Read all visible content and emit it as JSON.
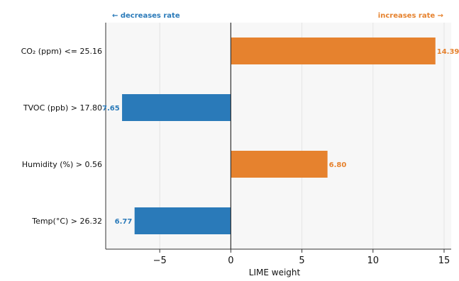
{
  "chart_data": {
    "type": "bar",
    "orientation": "horizontal",
    "direction_labels": {
      "negative": "← decreases rate",
      "positive": "increases rate →"
    },
    "categories": [
      "CO₂ (ppm) <= 25.16",
      "TVOC (ppb) > 17.80",
      "Humidity (%) > 0.56",
      "Temp(°C) > 26.32"
    ],
    "values": [
      14.39,
      -7.65,
      6.8,
      -6.77
    ],
    "value_labels": [
      "14.39",
      "7.65",
      "6.80",
      "6.77"
    ],
    "xlabel": "LIME weight",
    "ylabel": "",
    "title": "",
    "xlim": [
      -8.8,
      15.5
    ],
    "xticks": [
      -5,
      0,
      5,
      10,
      15
    ],
    "xtick_labels": [
      "−5",
      "0",
      "5",
      "10",
      "15"
    ],
    "grid": true,
    "colors": {
      "positive": "#e6822e",
      "negative": "#2a7ab9",
      "background": "#f7f7f7",
      "grid": "#e4e4e4"
    }
  }
}
